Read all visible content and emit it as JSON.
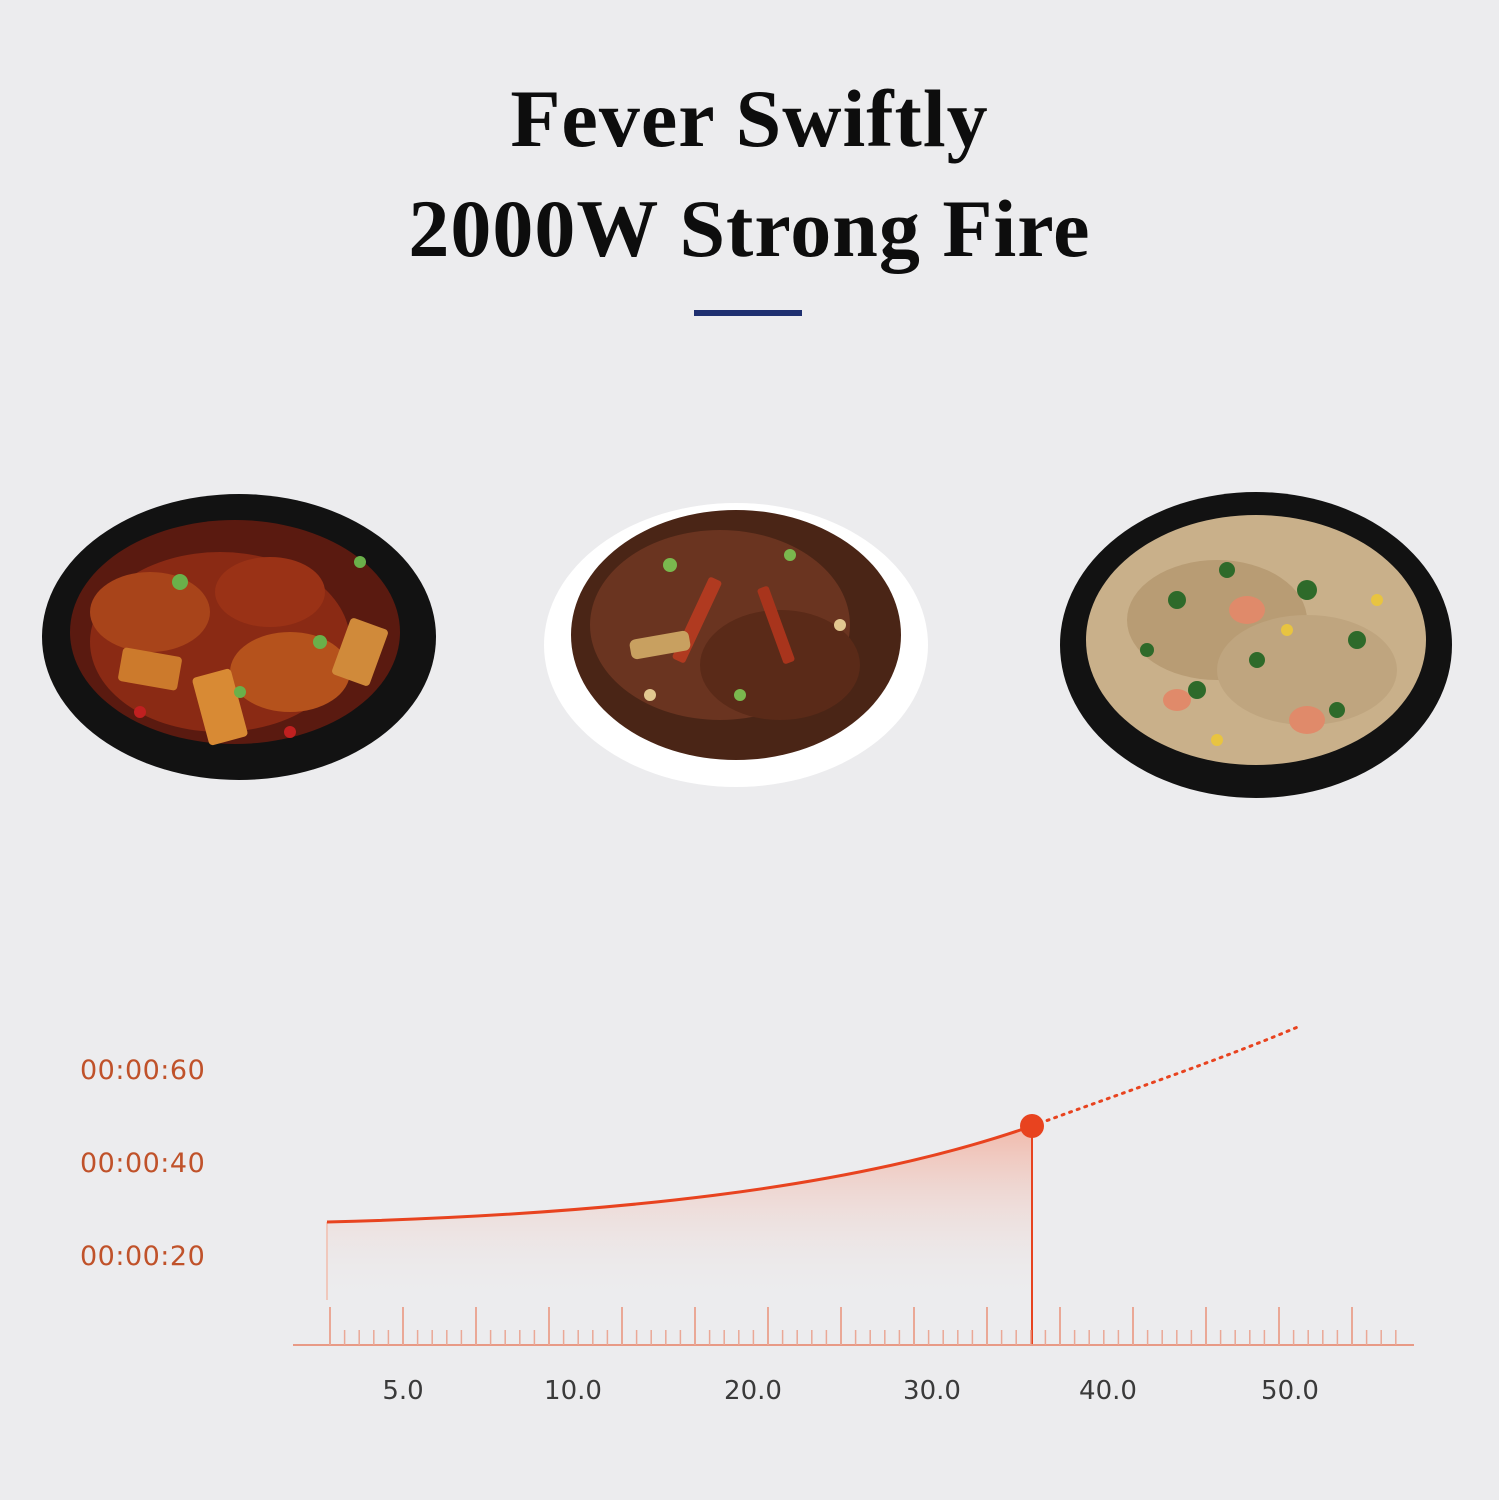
{
  "headline": {
    "line1": "Fever Swiftly",
    "line2": "2000W Strong Fire",
    "divider_color": "#1f3070"
  },
  "dishes": [
    {
      "name": "braised-chicken-dish",
      "plate_color": "#111111"
    },
    {
      "name": "stir-fried-noodles-dish",
      "plate_color": "#ffffff"
    },
    {
      "name": "fried-rice-dish",
      "plate_color": "#111111"
    }
  ],
  "chart_data": {
    "type": "line",
    "y_tick_labels": [
      "00:00:60",
      "00:00:40",
      "00:00:20"
    ],
    "x_tick_labels": [
      "5.0",
      "10.0",
      "20.0",
      "30.0",
      "40.0",
      "50.0"
    ],
    "highlight_x": 35,
    "series_color": "#e8431f",
    "label_color": "#c0522a"
  }
}
